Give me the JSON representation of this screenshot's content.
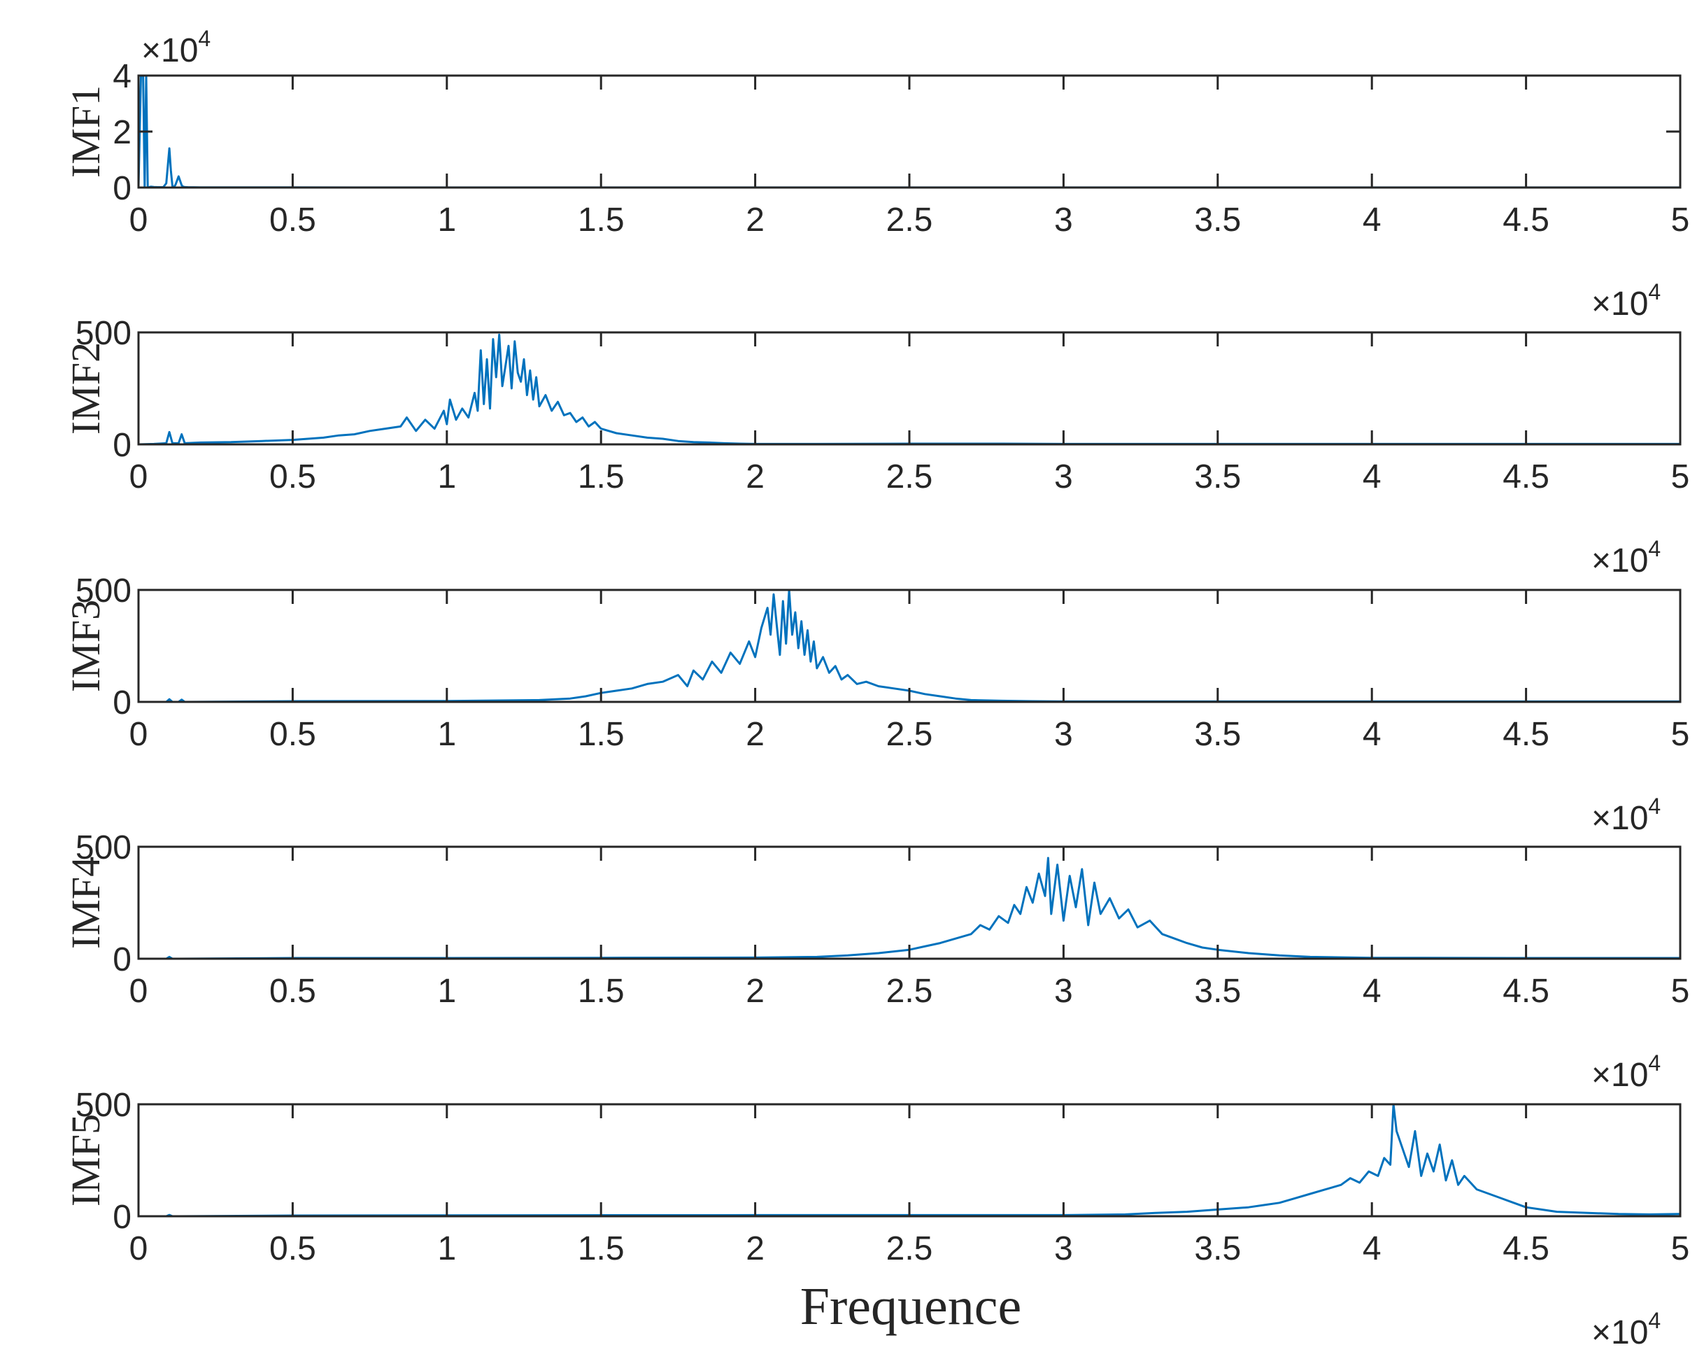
{
  "chart_data": {
    "type": "line",
    "line_color": "#0072BD",
    "axis_color": "#262626",
    "background": "#ffffff",
    "grid": false,
    "xlabel": "Frequence",
    "x_multiplier_label": "×10",
    "x_multiplier_exponent": "4",
    "xlim": [
      0,
      50000
    ],
    "x_ticks": [
      0,
      5000,
      10000,
      15000,
      20000,
      25000,
      30000,
      35000,
      40000,
      45000,
      50000
    ],
    "x_tick_labels": [
      "0",
      "0.5",
      "1",
      "1.5",
      "2",
      "2.5",
      "3",
      "3.5",
      "4",
      "4.5",
      "5"
    ],
    "panels": [
      {
        "ylabel": "IMF1",
        "ylim": [
          0,
          40000
        ],
        "y_ticks": [
          0,
          20000,
          40000
        ],
        "y_tick_labels": [
          "0",
          "2",
          "4"
        ],
        "y_multiplier_label": "×10",
        "y_multiplier_exponent": "4",
        "series": [
          {
            "x": [
              0,
              80,
              150,
              200,
              250,
              300,
              400,
              500,
              600,
              800,
              900,
              1000,
              1050,
              1100,
              1150,
              1200,
              1300,
              1400,
              1450,
              1500,
              1550,
              1600,
              2000,
              3000,
              5000,
              10000,
              20000,
              30000,
              40000,
              50000
            ],
            "y": [
              0,
              40000,
              40000,
              0,
              40000,
              0,
              300,
              200,
              150,
              120,
              1500,
              14000,
              6000,
              500,
              200,
              1000,
              4000,
              800,
              300,
              200,
              150,
              120,
              80,
              60,
              40,
              30,
              20,
              20,
              20,
              20
            ]
          }
        ]
      },
      {
        "ylabel": "IMF2",
        "ylim": [
          0,
          500
        ],
        "y_ticks": [
          0,
          500
        ],
        "y_tick_labels": [
          "0",
          "500"
        ],
        "series": [
          {
            "x": [
              0,
              500,
              900,
              1000,
              1100,
              1300,
              1400,
              1500,
              2000,
              3000,
              4000,
              5000,
              6000,
              6500,
              7000,
              7500,
              8000,
              8500,
              8700,
              9000,
              9300,
              9600,
              9900,
              10000,
              10100,
              10300,
              10500,
              10700,
              10900,
              11000,
              11100,
              11200,
              11300,
              11400,
              11500,
              11600,
              11700,
              11800,
              11900,
              12000,
              12100,
              12200,
              12300,
              12400,
              12500,
              12600,
              12700,
              12800,
              12900,
              13000,
              13200,
              13400,
              13600,
              13800,
              14000,
              14200,
              14400,
              14600,
              14800,
              15000,
              15500,
              16000,
              16500,
              17000,
              17500,
              18000,
              18500,
              19000,
              19500,
              20000,
              22000,
              25000,
              28000,
              30000,
              35000,
              40000,
              45000,
              50000
            ],
            "y": [
              0,
              2,
              5,
              55,
              5,
              5,
              45,
              5,
              8,
              10,
              15,
              20,
              30,
              40,
              45,
              60,
              70,
              80,
              120,
              60,
              110,
              70,
              150,
              90,
              200,
              110,
              160,
              120,
              230,
              150,
              420,
              180,
              380,
              160,
              470,
              300,
              490,
              260,
              350,
              440,
              250,
              460,
              320,
              280,
              380,
              220,
              330,
              200,
              300,
              170,
              220,
              150,
              190,
              130,
              140,
              100,
              120,
              80,
              100,
              70,
              50,
              40,
              30,
              25,
              15,
              10,
              8,
              5,
              3,
              2,
              2,
              3,
              3,
              2,
              2,
              2,
              2,
              2
            ]
          }
        ]
      },
      {
        "ylabel": "IMF3",
        "ylim": [
          0,
          500
        ],
        "y_ticks": [
          0,
          500
        ],
        "y_tick_labels": [
          "0",
          "500"
        ],
        "series": [
          {
            "x": [
              0,
              900,
              1000,
              1100,
              1300,
              1400,
              1500,
              5000,
              10000,
              13000,
              14000,
              14500,
              15000,
              15500,
              16000,
              16500,
              17000,
              17500,
              17800,
              18000,
              18300,
              18600,
              18900,
              19200,
              19500,
              19800,
              20000,
              20200,
              20400,
              20500,
              20600,
              20700,
              20800,
              20900,
              21000,
              21100,
              21200,
              21300,
              21400,
              21500,
              21600,
              21700,
              21800,
              21900,
              22000,
              22200,
              22400,
              22600,
              22800,
              23000,
              23300,
              23600,
              24000,
              24500,
              25000,
              25500,
              26000,
              26500,
              27000,
              28000,
              29000,
              30000,
              33000,
              35000,
              40000,
              45000,
              50000
            ],
            "y": [
              0,
              0,
              12,
              0,
              0,
              10,
              0,
              3,
              4,
              8,
              15,
              25,
              40,
              50,
              60,
              80,
              90,
              120,
              70,
              140,
              100,
              180,
              130,
              220,
              170,
              270,
              200,
              330,
              420,
              300,
              480,
              340,
              210,
              450,
              260,
              520,
              300,
              400,
              240,
              360,
              210,
              320,
              180,
              270,
              150,
              200,
              130,
              160,
              100,
              120,
              80,
              90,
              70,
              60,
              50,
              35,
              25,
              15,
              8,
              5,
              3,
              2,
              2,
              2,
              2,
              2,
              2
            ]
          }
        ]
      },
      {
        "ylabel": "IMF4",
        "ylim": [
          0,
          500
        ],
        "y_ticks": [
          0,
          500
        ],
        "y_tick_labels": [
          "0",
          "500"
        ],
        "series": [
          {
            "x": [
              0,
              900,
              1000,
              1100,
              5000,
              10000,
              15000,
              20000,
              22000,
              23000,
              24000,
              25000,
              25500,
              26000,
              26500,
              27000,
              27300,
              27600,
              27900,
              28200,
              28400,
              28600,
              28800,
              29000,
              29200,
              29400,
              29500,
              29600,
              29800,
              30000,
              30200,
              30400,
              30600,
              30800,
              31000,
              31200,
              31500,
              31800,
              32100,
              32400,
              32800,
              33200,
              33600,
              34000,
              34500,
              35000,
              36000,
              37000,
              38000,
              40000,
              45000,
              50000
            ],
            "y": [
              0,
              0,
              8,
              0,
              3,
              3,
              4,
              5,
              8,
              15,
              25,
              40,
              55,
              70,
              90,
              110,
              150,
              130,
              190,
              160,
              240,
              200,
              320,
              250,
              380,
              280,
              450,
              200,
              420,
              170,
              370,
              230,
              400,
              150,
              340,
              200,
              270,
              180,
              220,
              140,
              170,
              110,
              90,
              70,
              50,
              40,
              25,
              15,
              8,
              4,
              3,
              3
            ]
          }
        ]
      },
      {
        "ylabel": "IMF5",
        "ylim": [
          0,
          500
        ],
        "y_ticks": [
          0,
          500
        ],
        "y_tick_labels": [
          "0",
          "500"
        ],
        "series": [
          {
            "x": [
              0,
              900,
              1000,
              1100,
              5000,
              10000,
              20000,
              30000,
              32000,
              33000,
              34000,
              35000,
              36000,
              36500,
              37000,
              37500,
              38000,
              38500,
              39000,
              39300,
              39600,
              39900,
              40200,
              40400,
              40600,
              40700,
              40800,
              41000,
              41200,
              41400,
              41600,
              41800,
              42000,
              42200,
              42400,
              42600,
              42800,
              43000,
              43400,
              43800,
              44200,
              44600,
              45000,
              45500,
              46000,
              47000,
              48000,
              49000,
              50000
            ],
            "y": [
              0,
              0,
              6,
              0,
              3,
              4,
              5,
              5,
              8,
              15,
              20,
              30,
              40,
              50,
              60,
              80,
              100,
              120,
              140,
              170,
              150,
              200,
              180,
              260,
              230,
              540,
              380,
              300,
              220,
              380,
              180,
              280,
              200,
              320,
              160,
              250,
              140,
              180,
              120,
              100,
              80,
              60,
              40,
              30,
              20,
              15,
              10,
              8,
              10
            ]
          }
        ]
      }
    ]
  }
}
